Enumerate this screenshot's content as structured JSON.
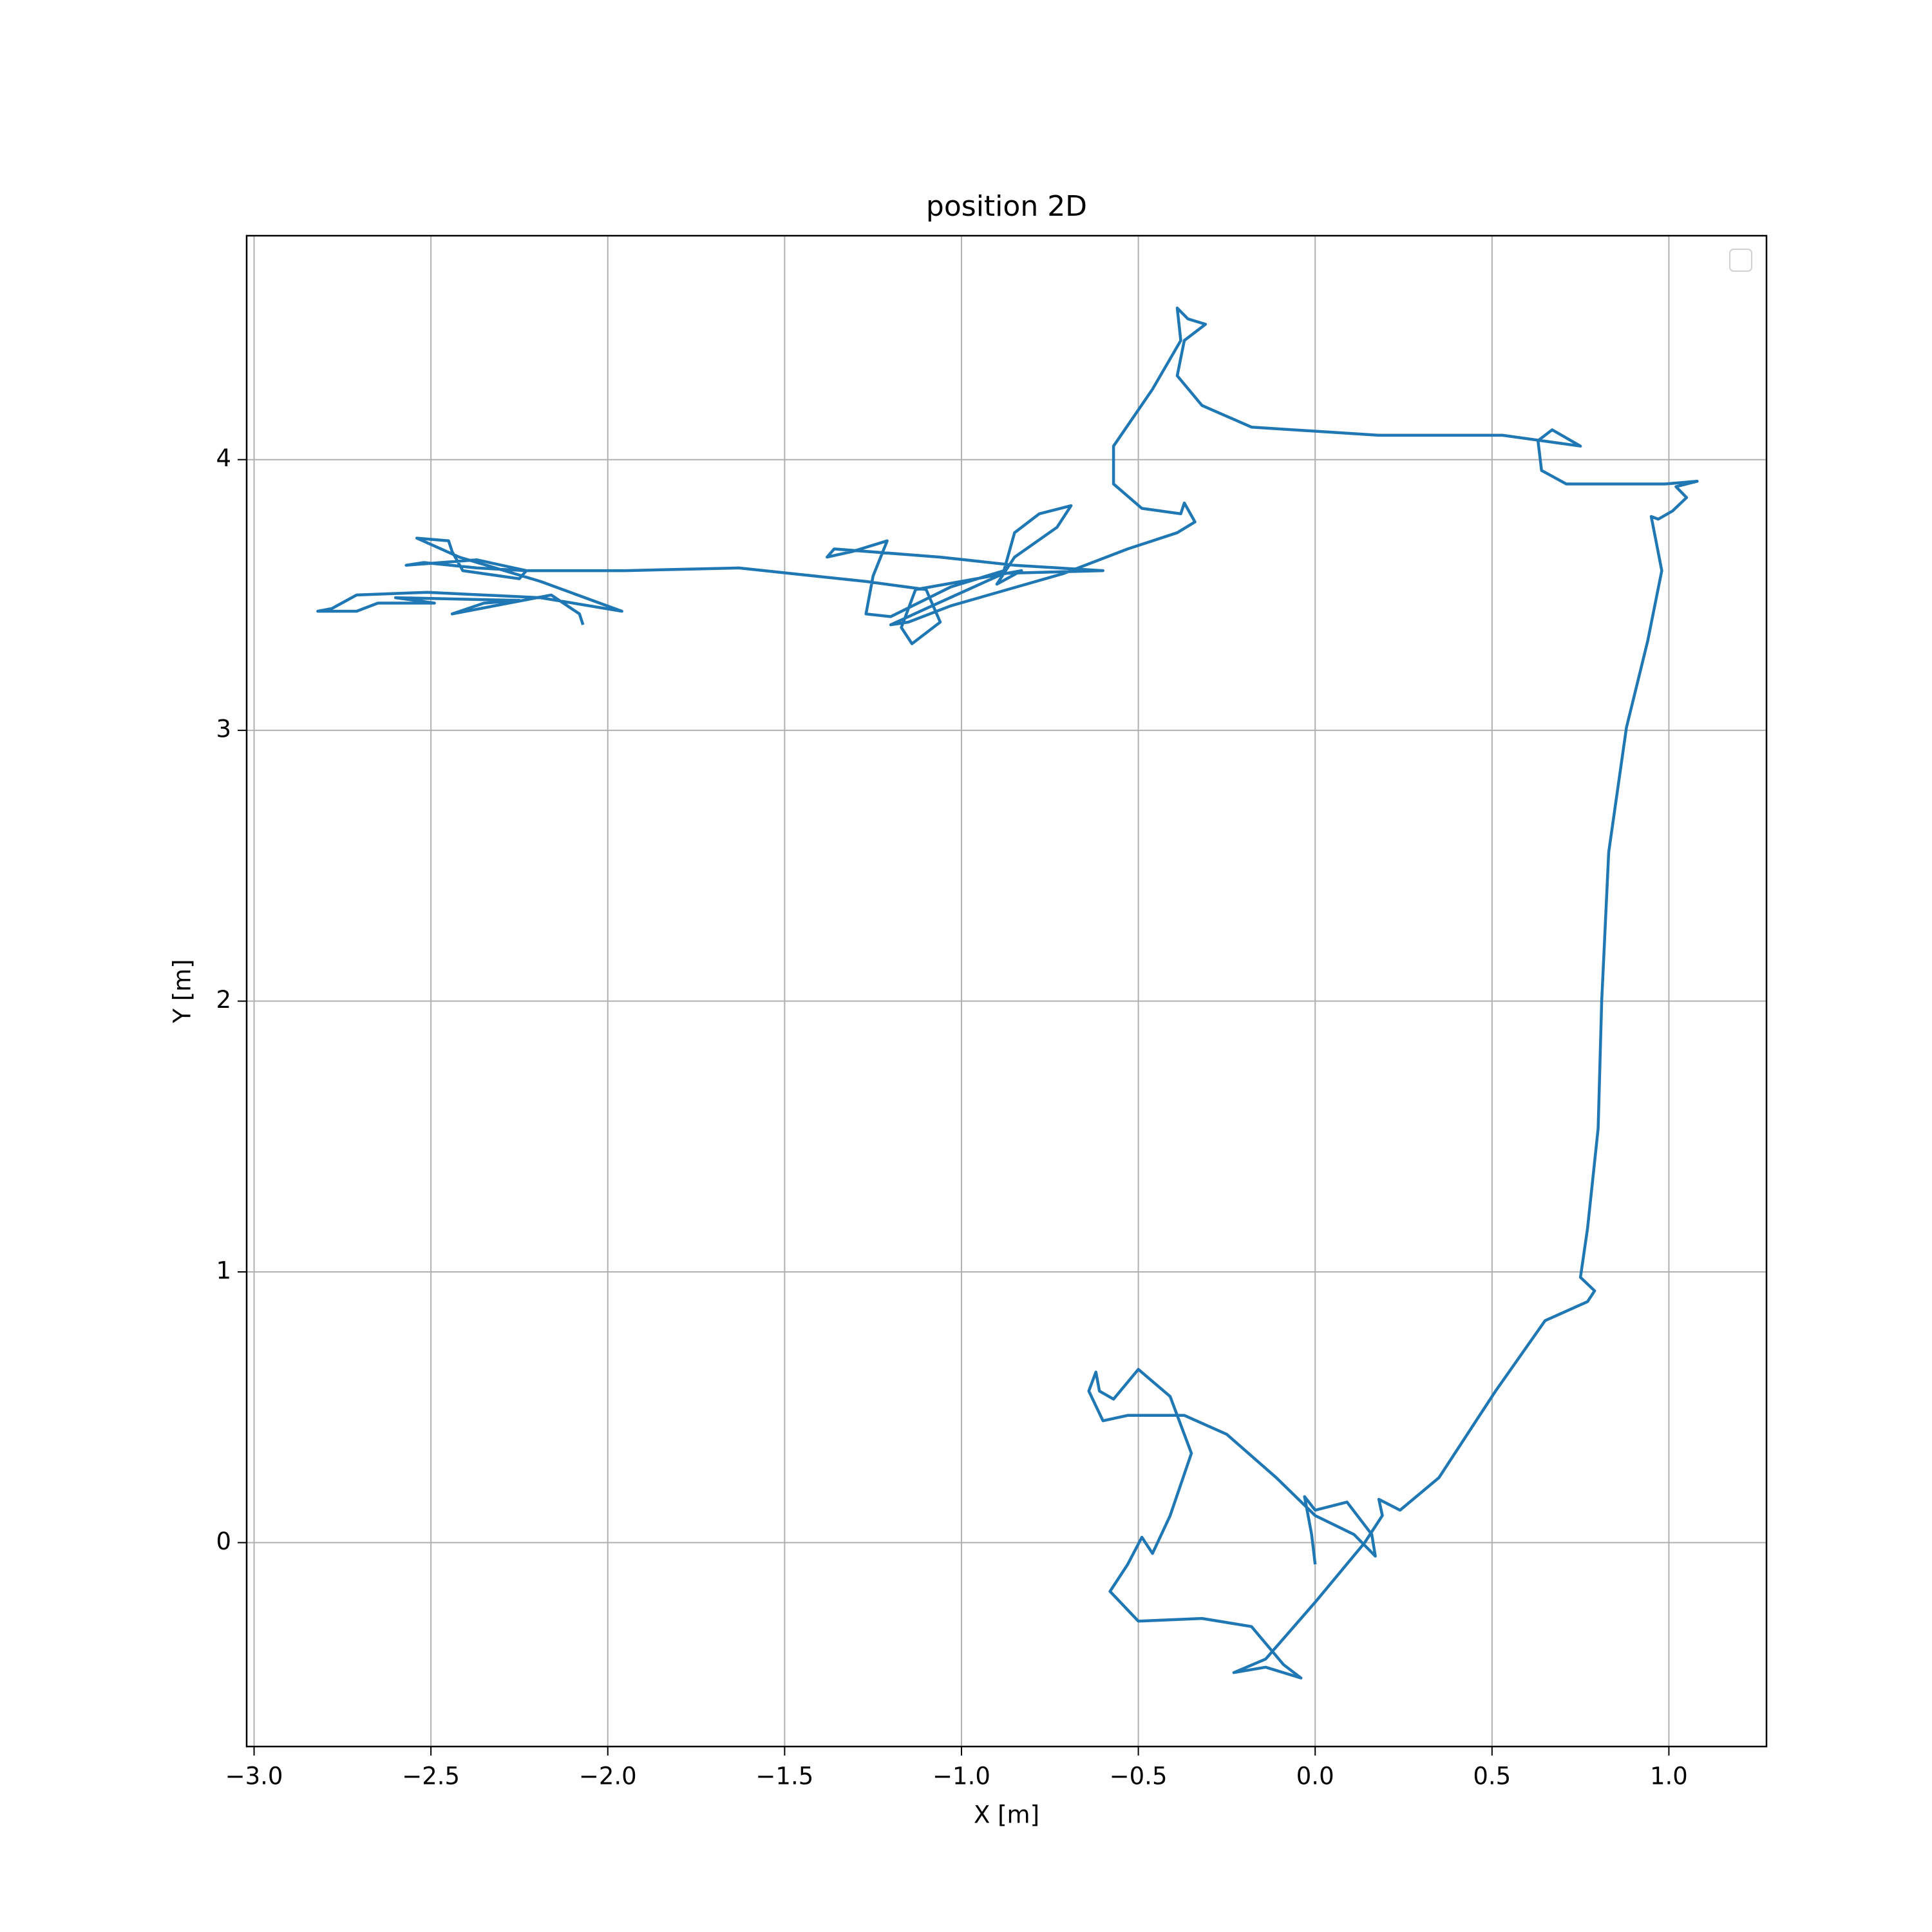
{
  "chart_data": {
    "type": "line",
    "title": "position 2D",
    "xlabel": "X [m]",
    "ylabel": "Y [m]",
    "x": [
      0.0,
      -0.01,
      -0.03,
      0.0,
      0.09,
      0.16,
      0.17,
      0.11,
      0.0,
      -0.11,
      -0.25,
      -0.37,
      -0.53,
      -0.6,
      -0.64,
      -0.62,
      -0.61,
      -0.57,
      -0.5,
      -0.41,
      -0.35,
      -0.41,
      -0.46,
      -0.49,
      -0.53,
      -0.58,
      -0.5,
      -0.32,
      -0.18,
      -0.09,
      -0.04,
      -0.14,
      -0.23,
      -0.14,
      0.0,
      0.14,
      0.19,
      0.18,
      0.24,
      0.35,
      0.51,
      0.65,
      0.77,
      0.79,
      0.75,
      0.77,
      0.8,
      0.81,
      0.83,
      0.88,
      0.94,
      0.98,
      0.95,
      0.97,
      1.01,
      1.05,
      1.02,
      1.08,
      0.99,
      0.71,
      0.64,
      0.63,
      0.67,
      0.75,
      0.53,
      0.18,
      -0.18,
      -0.32,
      -0.39,
      -0.37,
      -0.31,
      -0.36,
      -0.39,
      -0.38,
      -0.46,
      -0.57,
      -0.57,
      -0.49,
      -0.38,
      -0.37,
      -0.34,
      -0.39,
      -0.53,
      -0.71,
      -0.87,
      -1.03,
      -1.15,
      -1.2,
      -1.1,
      -0.88,
      -0.6,
      -0.85,
      -1.06,
      -1.36,
      -1.38,
      -1.31,
      -1.21,
      -1.25,
      -1.27,
      -1.2,
      -1.03,
      -0.88,
      -0.85,
      -0.78,
      -0.69,
      -0.73,
      -0.85,
      -0.9,
      -0.83,
      -1.13,
      -1.17,
      -1.14,
      -1.06,
      -1.1,
      -1.27,
      -1.63,
      -1.95,
      -2.23,
      -2.37,
      -2.52,
      -2.57,
      -2.37,
      -2.23,
      -2.25,
      -2.41,
      -2.44,
      -2.45,
      -2.54,
      -2.42,
      -2.19,
      -1.96,
      -2.19,
      -2.51,
      -2.71,
      -2.78,
      -2.82,
      -2.71,
      -2.65,
      -2.49,
      -2.6,
      -2.25,
      -2.35,
      -2.44,
      -2.16,
      -2.08,
      -2.07
    ],
    "series": [
      {
        "color": "#1f77b4",
        "values": [
          -0.08,
          0.03,
          0.17,
          0.12,
          0.15,
          0.03,
          -0.05,
          0.03,
          0.1,
          0.24,
          0.4,
          0.47,
          0.47,
          0.45,
          0.56,
          0.63,
          0.56,
          0.53,
          0.64,
          0.54,
          0.33,
          0.1,
          -0.04,
          0.02,
          -0.08,
          -0.18,
          -0.29,
          -0.28,
          -0.31,
          -0.45,
          -0.5,
          -0.46,
          -0.48,
          -0.43,
          -0.22,
          0.0,
          0.1,
          0.16,
          0.12,
          0.24,
          0.56,
          0.82,
          0.89,
          0.93,
          0.98,
          1.16,
          1.53,
          2.0,
          2.55,
          3.01,
          3.33,
          3.59,
          3.79,
          3.78,
          3.81,
          3.86,
          3.9,
          3.92,
          3.91,
          3.91,
          3.96,
          4.07,
          4.11,
          4.05,
          4.09,
          4.09,
          4.12,
          4.2,
          4.31,
          4.44,
          4.5,
          4.52,
          4.56,
          4.44,
          4.26,
          4.05,
          3.91,
          3.82,
          3.8,
          3.84,
          3.77,
          3.73,
          3.67,
          3.58,
          3.52,
          3.46,
          3.4,
          3.39,
          3.45,
          3.58,
          3.59,
          3.61,
          3.64,
          3.67,
          3.64,
          3.66,
          3.7,
          3.57,
          3.43,
          3.42,
          3.53,
          3.59,
          3.73,
          3.8,
          3.83,
          3.75,
          3.64,
          3.54,
          3.59,
          3.52,
          3.38,
          3.32,
          3.4,
          3.52,
          3.55,
          3.6,
          3.59,
          3.59,
          3.6,
          3.62,
          3.61,
          3.63,
          3.59,
          3.56,
          3.59,
          3.66,
          3.7,
          3.71,
          3.64,
          3.55,
          3.44,
          3.49,
          3.51,
          3.5,
          3.45,
          3.44,
          3.44,
          3.47,
          3.47,
          3.49,
          3.48,
          3.47,
          3.43,
          3.5,
          3.43,
          3.39
        ]
      }
    ],
    "xlim": [
      -3.021,
      1.276
    ],
    "ylim": [
      -0.753,
      4.827
    ],
    "xticks": [
      {
        "value": -3,
        "label": "−3.0"
      },
      {
        "value": -2.5,
        "label": "−2.5"
      },
      {
        "value": -2,
        "label": "−2.0"
      },
      {
        "value": -1.5,
        "label": "−1.5"
      },
      {
        "value": -1,
        "label": "−1.0"
      },
      {
        "value": -0.5,
        "label": "−0.5"
      },
      {
        "value": 0,
        "label": "0.0"
      },
      {
        "value": 0.5,
        "label": "0.5"
      },
      {
        "value": 1,
        "label": "1.0"
      }
    ],
    "yticks": [
      0,
      1,
      2,
      3,
      4
    ],
    "grid": true
  }
}
